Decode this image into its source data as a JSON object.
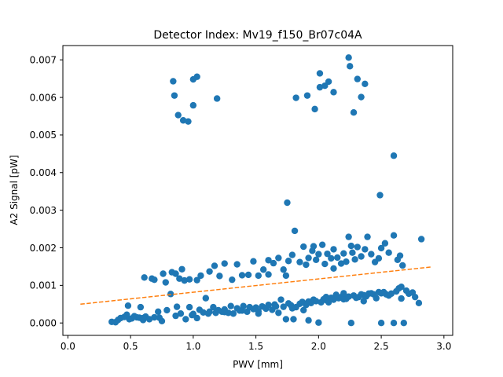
{
  "chart_data": {
    "type": "scatter",
    "title": "Detector Index: Mv19_f150_Br07c04A",
    "xlabel": "PWV [mm]",
    "ylabel": "A2 Signal [pW]",
    "xlim": [
      -0.04,
      3.07
    ],
    "ylim": [
      -0.00033,
      0.00738
    ],
    "x_ticks": [
      0.0,
      0.5,
      1.0,
      1.5,
      2.0,
      2.5,
      3.0
    ],
    "x_tick_labels": [
      "0.0",
      "0.5",
      "1.0",
      "1.5",
      "2.0",
      "2.5",
      "3.0"
    ],
    "y_ticks": [
      0.0,
      0.001,
      0.002,
      0.003,
      0.004,
      0.005,
      0.006,
      0.007
    ],
    "y_tick_labels": [
      "0.000",
      "0.001",
      "0.002",
      "0.003",
      "0.004",
      "0.005",
      "0.006",
      "0.007"
    ],
    "grid": false,
    "legend": null,
    "series": [
      {
        "name": "data",
        "kind": "scatter",
        "color": "#1f77b4",
        "points": [
          [
            0.84,
            0.00643
          ],
          [
            0.85,
            0.00605
          ],
          [
            0.88,
            0.00553
          ],
          [
            0.92,
            0.00539
          ],
          [
            0.96,
            0.00536
          ],
          [
            1.0,
            0.00648
          ],
          [
            1.03,
            0.00655
          ],
          [
            1.0,
            0.00579
          ],
          [
            1.19,
            0.00597
          ],
          [
            1.82,
            0.00599
          ],
          [
            1.91,
            0.00605
          ],
          [
            1.97,
            0.00569
          ],
          [
            2.01,
            0.00664
          ],
          [
            2.01,
            0.00627
          ],
          [
            2.05,
            0.00631
          ],
          [
            2.08,
            0.00642
          ],
          [
            2.12,
            0.00614
          ],
          [
            2.24,
            0.00706
          ],
          [
            2.25,
            0.00683
          ],
          [
            2.28,
            0.0056
          ],
          [
            2.31,
            0.00649
          ],
          [
            2.34,
            0.00601
          ],
          [
            2.37,
            0.00636
          ],
          [
            1.75,
            0.0032
          ],
          [
            2.49,
            0.0034
          ],
          [
            2.6,
            0.00445
          ],
          [
            0.61,
            0.00121
          ],
          [
            0.67,
            0.00118
          ],
          [
            0.69,
            0.00115
          ],
          [
            0.76,
            0.00131
          ],
          [
            0.78,
            0.00108
          ],
          [
            0.83,
            0.00135
          ],
          [
            0.86,
            0.00131
          ],
          [
            0.89,
            0.00118
          ],
          [
            0.91,
            0.00143
          ],
          [
            0.93,
            0.00113
          ],
          [
            0.97,
            0.00116
          ],
          [
            1.03,
            0.00114
          ],
          [
            1.06,
            0.00126
          ],
          [
            1.13,
            0.00137
          ],
          [
            1.17,
            0.00152
          ],
          [
            1.21,
            0.00125
          ],
          [
            1.25,
            0.00158
          ],
          [
            1.31,
            0.00115
          ],
          [
            1.35,
            0.00156
          ],
          [
            1.39,
            0.00127
          ],
          [
            1.44,
            0.00128
          ],
          [
            1.48,
            0.00164
          ],
          [
            1.52,
            0.00126
          ],
          [
            1.56,
            0.00142
          ],
          [
            1.6,
            0.00167
          ],
          [
            1.64,
            0.00159
          ],
          [
            1.68,
            0.00173
          ],
          [
            1.72,
            0.00142
          ],
          [
            1.76,
            0.00165
          ],
          [
            1.79,
            0.00181
          ],
          [
            1.81,
            0.00245
          ],
          [
            1.85,
            0.00162
          ],
          [
            1.88,
            0.00203
          ],
          [
            1.9,
            0.00155
          ],
          [
            1.92,
            0.00173
          ],
          [
            1.95,
            0.00192
          ],
          [
            1.98,
            0.00168
          ],
          [
            2.0,
            0.00183
          ],
          [
            2.03,
            0.00208
          ],
          [
            2.05,
            0.00157
          ],
          [
            2.07,
            0.00184
          ],
          [
            2.1,
            0.00172
          ],
          [
            2.12,
            0.00196
          ],
          [
            2.15,
            0.00174
          ],
          [
            2.18,
            0.00158
          ],
          [
            2.2,
            0.00185
          ],
          [
            2.22,
            0.00163
          ],
          [
            2.24,
            0.00229
          ],
          [
            2.27,
            0.00187
          ],
          [
            2.29,
            0.00169
          ],
          [
            2.31,
            0.00202
          ],
          [
            2.34,
            0.00177
          ],
          [
            2.37,
            0.00196
          ],
          [
            2.39,
            0.00229
          ],
          [
            2.42,
            0.00183
          ],
          [
            2.45,
            0.00162
          ],
          [
            2.48,
            0.00172
          ],
          [
            2.5,
            0.00199
          ],
          [
            2.53,
            0.00212
          ],
          [
            2.56,
            0.00187
          ],
          [
            2.6,
            0.00233
          ],
          [
            2.63,
            0.00168
          ],
          [
            2.65,
            0.00179
          ],
          [
            2.67,
            0.00153
          ],
          [
            2.82,
            0.00223
          ],
          [
            1.74,
            0.00126
          ],
          [
            1.6,
            0.00129
          ],
          [
            2.12,
            0.00145
          ],
          [
            2.26,
            0.00205
          ],
          [
            1.96,
            0.00204
          ],
          [
            0.35,
            3e-05
          ],
          [
            0.38,
            2e-05
          ],
          [
            0.4,
            8e-05
          ],
          [
            0.42,
            0.00013
          ],
          [
            0.45,
            0.00016
          ],
          [
            0.47,
            0.00022
          ],
          [
            0.48,
            0.00046
          ],
          [
            0.49,
            0.0001
          ],
          [
            0.51,
            0.00012
          ],
          [
            0.53,
            0.00018
          ],
          [
            0.55,
            0.00015
          ],
          [
            0.57,
            0.00014
          ],
          [
            0.58,
            0.00042
          ],
          [
            0.6,
            8e-05
          ],
          [
            0.62,
            0.00017
          ],
          [
            0.65,
            0.0001
          ],
          [
            0.69,
            0.00015
          ],
          [
            0.72,
            0.0003
          ],
          [
            0.75,
            5e-05
          ],
          [
            0.79,
            0.00034
          ],
          [
            0.82,
            0.00077
          ],
          [
            0.87,
            0.00043
          ],
          [
            0.9,
            0.00025
          ],
          [
            0.94,
            0.0001
          ],
          [
            0.97,
            0.00042
          ],
          [
            1.0,
            0.00024
          ],
          [
            1.03,
            0.00013
          ],
          [
            1.05,
            0.00035
          ],
          [
            1.08,
            0.00028
          ],
          [
            1.1,
            0.00066
          ],
          [
            1.13,
            0.0003
          ],
          [
            1.16,
            0.00042
          ],
          [
            1.18,
            0.00027
          ],
          [
            1.2,
            0.00034
          ],
          [
            1.23,
            0.0003
          ],
          [
            1.25,
            0.00036
          ],
          [
            1.28,
            0.00027
          ],
          [
            1.3,
            0.00045
          ],
          [
            1.32,
            0.00025
          ],
          [
            1.35,
            0.00039
          ],
          [
            1.37,
            0.00033
          ],
          [
            1.4,
            0.00045
          ],
          [
            1.43,
            0.0003
          ],
          [
            1.45,
            0.00042
          ],
          [
            1.48,
            0.00037
          ],
          [
            1.5,
            0.00041
          ],
          [
            1.52,
            0.00025
          ],
          [
            1.55,
            0.00044
          ],
          [
            1.58,
            0.00038
          ],
          [
            1.6,
            0.00048
          ],
          [
            1.63,
            0.00035
          ],
          [
            1.65,
            0.00049
          ],
          [
            1.68,
            0.00027
          ],
          [
            1.7,
            0.00062
          ],
          [
            1.72,
            0.00043
          ],
          [
            1.74,
            0.0001
          ],
          [
            1.76,
            0.00052
          ],
          [
            1.78,
            0.00047
          ],
          [
            1.8,
            0.0001
          ],
          [
            1.82,
            0.00042
          ],
          [
            1.85,
            0.00051
          ],
          [
            1.87,
            0.00056
          ],
          [
            1.88,
            0.00034
          ],
          [
            1.9,
            0.00048
          ],
          [
            1.92,
            7e-05
          ],
          [
            1.94,
            0.00053
          ],
          [
            1.96,
            0.00062
          ],
          [
            1.98,
            0.00058
          ],
          [
            2.0,
            1e-05
          ],
          [
            2.02,
            0.00055
          ],
          [
            2.04,
            0.00063
          ],
          [
            2.06,
            0.00061
          ],
          [
            2.08,
            0.00055
          ],
          [
            2.1,
            0.00067
          ],
          [
            2.12,
            0.00062
          ],
          [
            2.14,
            0.00075
          ],
          [
            2.16,
            0.00066
          ],
          [
            2.18,
            0.00069
          ],
          [
            2.2,
            0.00063
          ],
          [
            2.22,
            0.00064
          ],
          [
            2.24,
            0.0007
          ],
          [
            2.26,
            0.0
          ],
          [
            2.28,
            0.00073
          ],
          [
            2.3,
            0.00067
          ],
          [
            2.32,
            0.00069
          ],
          [
            2.34,
            0.00076
          ],
          [
            2.36,
            0.00074
          ],
          [
            2.38,
            0.00071
          ],
          [
            2.4,
            0.00078
          ],
          [
            2.42,
            0.00079
          ],
          [
            2.44,
            0.00076
          ],
          [
            2.46,
            0.00066
          ],
          [
            2.48,
            0.00082
          ],
          [
            2.5,
            0.0
          ],
          [
            2.52,
            0.00082
          ],
          [
            2.54,
            0.00076
          ],
          [
            2.56,
            0.00073
          ],
          [
            2.58,
            0.00078
          ],
          [
            2.6,
            0.0
          ],
          [
            2.62,
            0.00084
          ],
          [
            2.64,
            0.00092
          ],
          [
            2.66,
            0.00096
          ],
          [
            2.68,
            0.0
          ],
          [
            2.7,
            0.00086
          ],
          [
            2.72,
            0.00078
          ],
          [
            2.75,
            0.00081
          ],
          [
            2.77,
            0.00069
          ],
          [
            2.8,
            0.00053
          ],
          [
            2.66,
            0.00065
          ],
          [
            2.5,
            0.00079
          ],
          [
            2.36,
            0.00058
          ],
          [
            2.2,
            0.00079
          ],
          [
            2.06,
            0.00069
          ],
          [
            1.92,
            0.00057
          ],
          [
            1.79,
            0.00039
          ],
          [
            1.66,
            0.00044
          ],
          [
            1.52,
            0.00031
          ],
          [
            1.39,
            0.00033
          ],
          [
            1.25,
            0.00029
          ],
          [
            1.12,
            0.00025
          ],
          [
            0.99,
            0.00021
          ],
          [
            0.86,
            0.00019
          ],
          [
            0.73,
            0.00014
          ],
          [
            0.6,
            0.00013
          ]
        ]
      },
      {
        "name": "fit",
        "kind": "dashed-line",
        "color": "#ff7f0e",
        "x": [
          0.1,
          2.9
        ],
        "y": [
          0.0005,
          0.00149
        ]
      }
    ]
  }
}
